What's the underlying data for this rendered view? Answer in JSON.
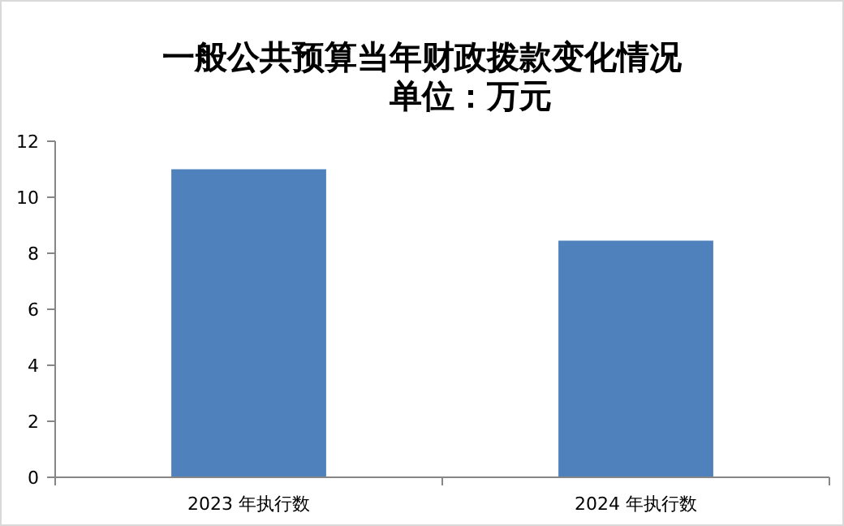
{
  "chart_data": {
    "type": "bar",
    "title": "一般公共预算当年财政拨款变化情况",
    "subtitle": "单位：万元",
    "categories": [
      "2023 年执行数",
      "2024 年执行数"
    ],
    "values": [
      11.0,
      8.45
    ],
    "color": "#4f81bd",
    "ylim": [
      0,
      12
    ],
    "yticks": [
      0,
      2,
      4,
      6,
      8,
      10,
      12
    ]
  }
}
